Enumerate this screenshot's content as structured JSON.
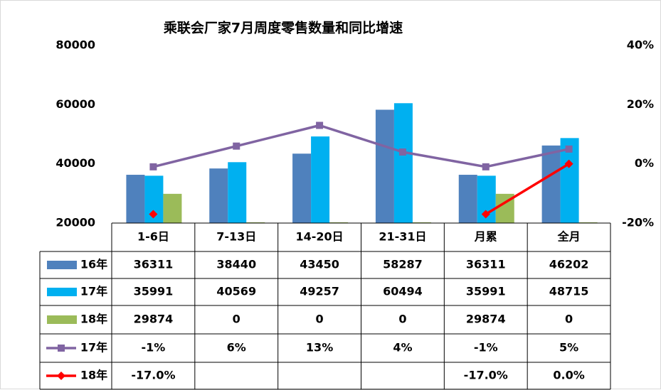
{
  "chart_data": {
    "type": "bar",
    "title": "乘联会厂家7月周度零售数量和同比增速",
    "categories": [
      "1-6日",
      "7-13日",
      "14-20日",
      "21-31日",
      "月累",
      "全月"
    ],
    "ylim": [
      20000,
      80000
    ],
    "yticks": [
      "80000",
      "60000",
      "40000",
      "20000"
    ],
    "y2lim": [
      -0.2,
      0.4
    ],
    "y2ticks": [
      "40%",
      "20%",
      "0%",
      "-20%"
    ],
    "bar_series": [
      {
        "name": "16年",
        "color": "#4f81bd",
        "values": [
          36311,
          38440,
          43450,
          58287,
          36311,
          46202
        ],
        "labels": [
          "36311",
          "38440",
          "43450",
          "58287",
          "36311",
          "46202"
        ]
      },
      {
        "name": "17年",
        "color": "#00b0f0",
        "values": [
          35991,
          40569,
          49257,
          60494,
          35991,
          48715
        ],
        "labels": [
          "35991",
          "40569",
          "49257",
          "60494",
          "35991",
          "48715"
        ]
      },
      {
        "name": "18年",
        "color": "#9bbb59",
        "values": [
          29874,
          0,
          0,
          0,
          29874,
          0
        ],
        "labels": [
          "29874",
          "0",
          "0",
          "0",
          "29874",
          "0"
        ]
      }
    ],
    "line_series": [
      {
        "name": "17年",
        "color": "#8064a2",
        "marker": "square",
        "values": [
          -0.01,
          0.06,
          0.13,
          0.04,
          -0.01,
          0.05
        ],
        "labels": [
          "-1%",
          "6%",
          "13%",
          "4%",
          "-1%",
          "5%"
        ]
      },
      {
        "name": "18年",
        "color": "#ff0000",
        "marker": "diamond",
        "values": [
          -0.17,
          null,
          null,
          null,
          -0.17,
          0.0
        ],
        "labels": [
          "-17.0%",
          "",
          "",
          "",
          "-17.0%",
          "0.0%"
        ]
      }
    ]
  }
}
